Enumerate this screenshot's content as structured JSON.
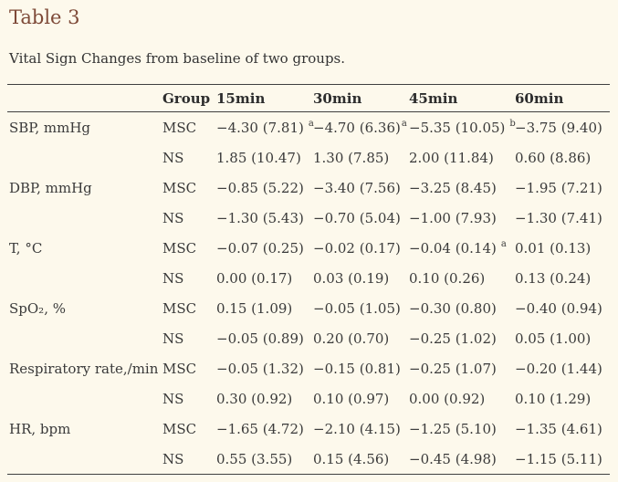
{
  "page": {
    "title": "Table 3",
    "caption": "Vital Sign Changes from baseline of two groups."
  },
  "colors": {
    "background": "#fdf9ec",
    "title_text": "#7e4a38",
    "body_text": "#3a3a3a",
    "rule": "#3f3f3f"
  },
  "table": {
    "columns": [
      "",
      "Group",
      "15min",
      "30min",
      "45min",
      "60min"
    ],
    "measures": [
      {
        "label": "SBP, mmHg",
        "rows": [
          {
            "group": "MSC",
            "cells": [
              {
                "text": "−4.30 (7.81)",
                "sup": "a",
                "gap": true
              },
              {
                "text": "−4.70 (6.36)",
                "sup": "a",
                "gap": false
              },
              {
                "text": "−5.35 (10.05)",
                "sup": "b",
                "gap": true
              },
              {
                "text": "−3.75 (9.40)"
              }
            ]
          },
          {
            "group": "NS",
            "cells": [
              {
                "text": "1.85 (10.47)"
              },
              {
                "text": "1.30 (7.85)"
              },
              {
                "text": "2.00 (11.84)"
              },
              {
                "text": "0.60 (8.86)"
              }
            ]
          }
        ]
      },
      {
        "label": "DBP, mmHg",
        "rows": [
          {
            "group": "MSC",
            "cells": [
              {
                "text": "−0.85 (5.22)"
              },
              {
                "text": "−3.40 (7.56)"
              },
              {
                "text": "−3.25 (8.45)"
              },
              {
                "text": "−1.95 (7.21)"
              }
            ]
          },
          {
            "group": "NS",
            "cells": [
              {
                "text": "−1.30 (5.43)"
              },
              {
                "text": "−0.70 (5.04)"
              },
              {
                "text": "−1.00 (7.93)"
              },
              {
                "text": "−1.30 (7.41)"
              }
            ]
          }
        ]
      },
      {
        "label": "T, °C",
        "rows": [
          {
            "group": "MSC",
            "cells": [
              {
                "text": "−0.07 (0.25)"
              },
              {
                "text": "−0.02 (0.17)"
              },
              {
                "text": "−0.04 (0.14)",
                "sup": "a",
                "gap": true
              },
              {
                "text": "0.01 (0.13)"
              }
            ]
          },
          {
            "group": "NS",
            "cells": [
              {
                "text": "0.00 (0.17)"
              },
              {
                "text": "0.03 (0.19)"
              },
              {
                "text": "0.10 (0.26)"
              },
              {
                "text": "0.13 (0.24)"
              }
            ]
          }
        ]
      },
      {
        "label": "SpO₂, %",
        "rows": [
          {
            "group": "MSC",
            "cells": [
              {
                "text": "0.15 (1.09)"
              },
              {
                "text": "−0.05 (1.05)"
              },
              {
                "text": "−0.30 (0.80)"
              },
              {
                "text": "−0.40 (0.94)"
              }
            ]
          },
          {
            "group": "NS",
            "cells": [
              {
                "text": "−0.05 (0.89)"
              },
              {
                "text": "0.20 (0.70)"
              },
              {
                "text": "−0.25 (1.02)"
              },
              {
                "text": "0.05 (1.00)"
              }
            ]
          }
        ]
      },
      {
        "label": "Respiratory rate,/min",
        "rows": [
          {
            "group": "MSC",
            "cells": [
              {
                "text": "−0.05 (1.32)"
              },
              {
                "text": "−0.15 (0.81)"
              },
              {
                "text": "−0.25 (1.07)"
              },
              {
                "text": "−0.20 (1.44)"
              }
            ]
          },
          {
            "group": "NS",
            "cells": [
              {
                "text": "0.30 (0.92)"
              },
              {
                "text": "0.10 (0.97)"
              },
              {
                "text": "0.00 (0.92)"
              },
              {
                "text": "0.10 (1.29)"
              }
            ]
          }
        ]
      },
      {
        "label": "HR, bpm",
        "rows": [
          {
            "group": "MSC",
            "cells": [
              {
                "text": "−1.65 (4.72)"
              },
              {
                "text": "−2.10 (4.15)"
              },
              {
                "text": "−1.25 (5.10)"
              },
              {
                "text": "−1.35 (4.61)"
              }
            ]
          },
          {
            "group": "NS",
            "cells": [
              {
                "text": "0.55 (3.55)"
              },
              {
                "text": "0.15 (4.56)"
              },
              {
                "text": "−0.45 (4.98)"
              },
              {
                "text": "−1.15 (5.11)"
              }
            ]
          }
        ]
      }
    ]
  }
}
